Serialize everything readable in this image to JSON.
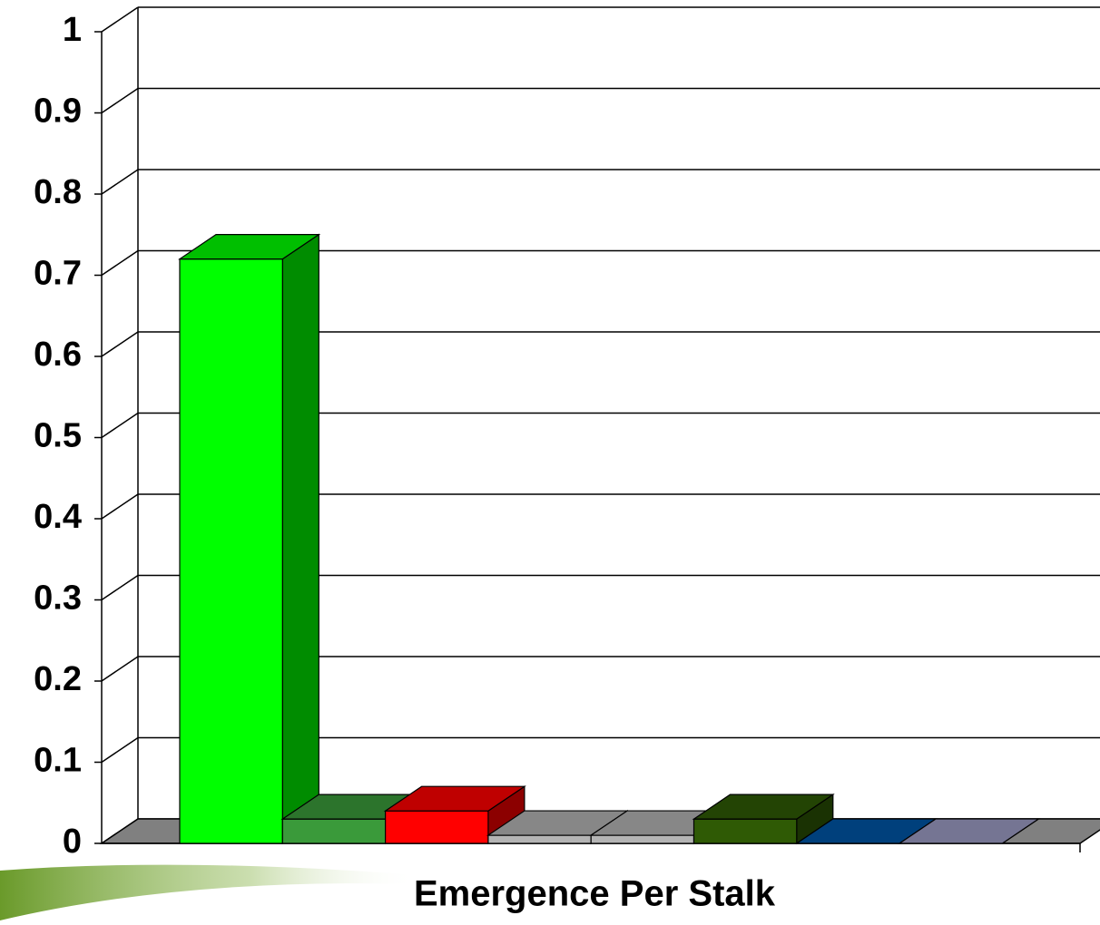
{
  "chart_data": {
    "type": "bar3d",
    "xlabel": "Emergence Per Stalk",
    "values": [
      0.72,
      0.03,
      0.04,
      0.01,
      0.01,
      0.03,
      0,
      0
    ],
    "colors": [
      "#00ff00",
      "#3a9a3a",
      "#ff0000",
      "#b4b4b4",
      "#b4b4b4",
      "#2f5a05",
      "#0055a5",
      "#9c9cc4"
    ],
    "ylim": [
      0,
      1
    ],
    "yticks": [
      0,
      0.1,
      0.2,
      0.3,
      0.4,
      0.5,
      0.6,
      0.7,
      0.8,
      0.9,
      1
    ],
    "grid": true
  }
}
